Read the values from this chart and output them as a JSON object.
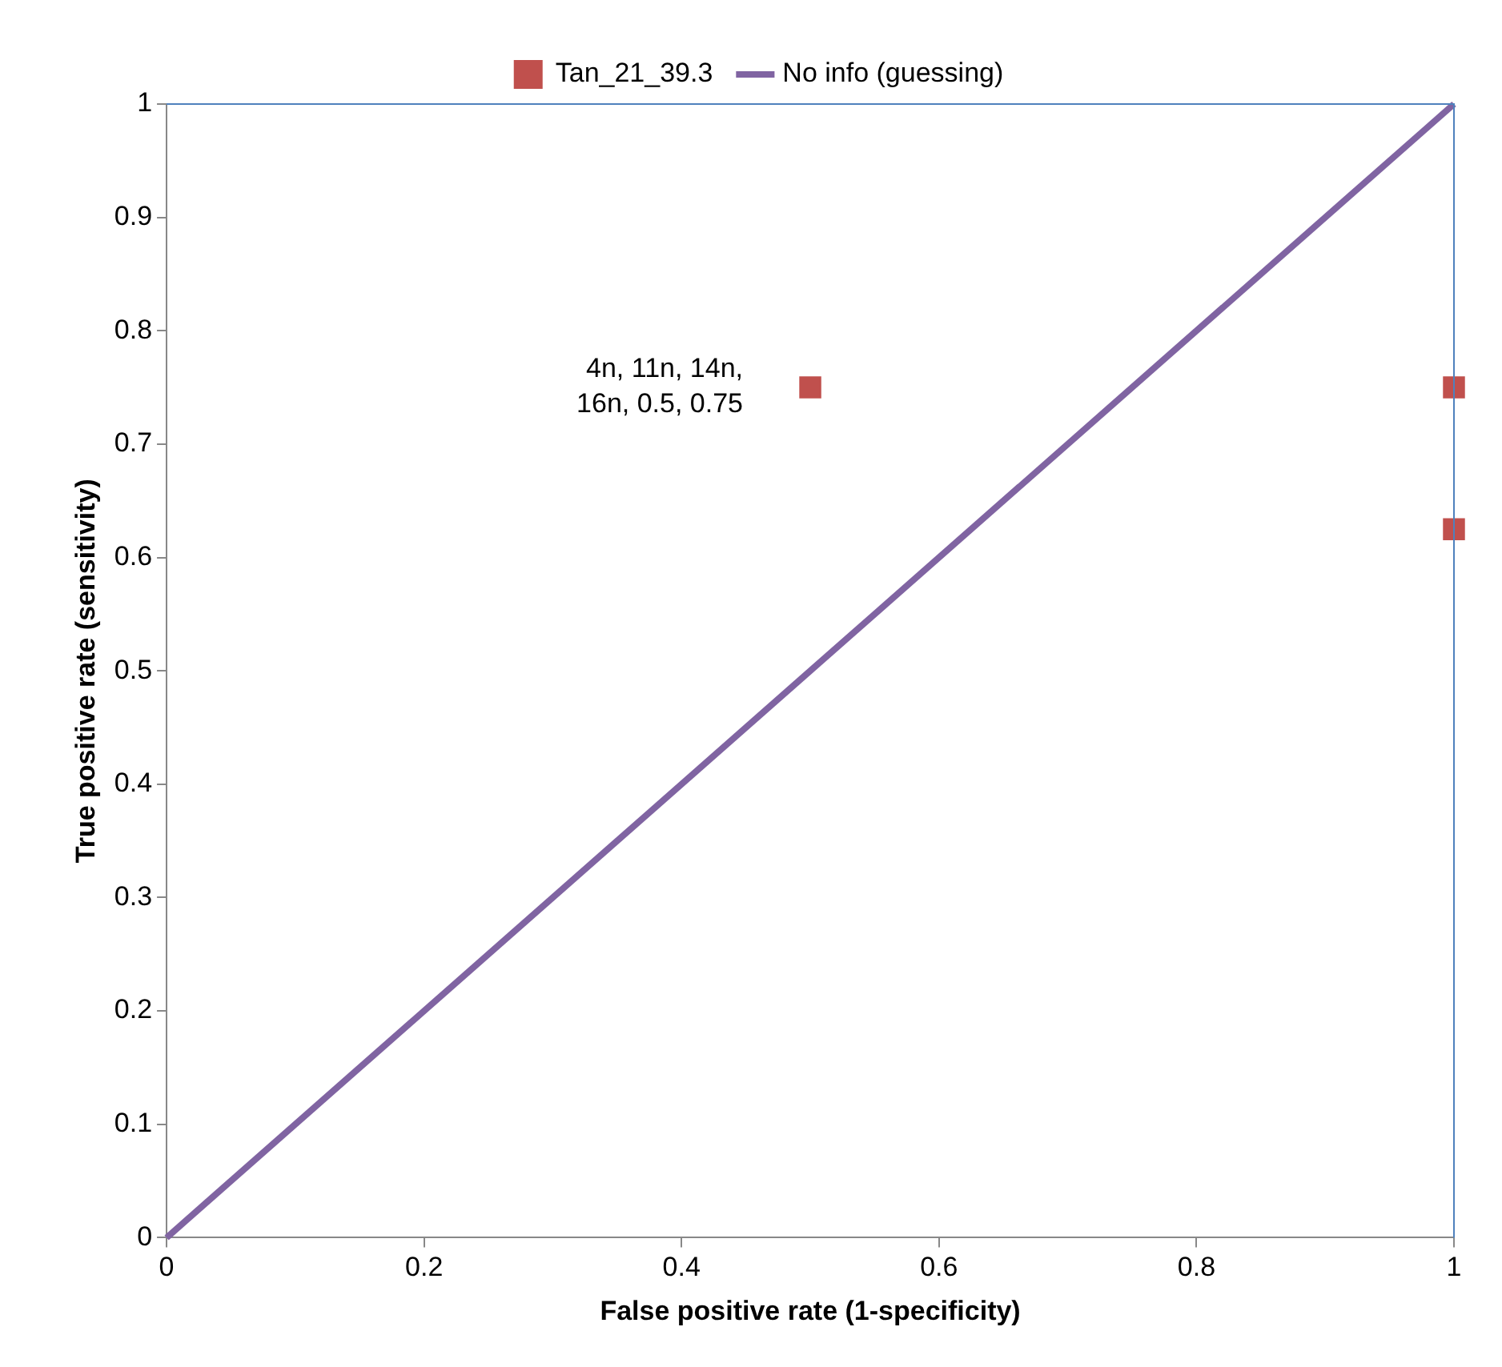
{
  "chart_data": {
    "type": "scatter",
    "xlabel": "False positive rate (1-specificity)",
    "ylabel": "True positive rate (sensitivity)",
    "series": [
      {
        "name": "Tan_21_39.3",
        "color": "#c0504d",
        "marker": "square",
        "x": [
          0.5,
          1,
          1
        ],
        "values": [
          0.75,
          0.75,
          0.625
        ]
      },
      {
        "name": "No info (guessing)",
        "type": "line",
        "marker": "none",
        "color": "#8064a2",
        "x": [
          0,
          1
        ],
        "values": [
          0,
          1
        ]
      }
    ],
    "xlim": [
      0,
      1
    ],
    "xticks": [
      0,
      0.2,
      0.4,
      0.6,
      0.8,
      1
    ],
    "ylim": [
      0,
      1
    ],
    "yticks": [
      0,
      0.1,
      0.2,
      0.3,
      0.4,
      0.5,
      0.6,
      0.7,
      0.8,
      0.9,
      1
    ],
    "annotations": [
      {
        "text": "4n, 11n, 14n, 16n, 0.5, 0.75",
        "x": 0.5,
        "y": 0.75
      }
    ],
    "grid": false,
    "legend": "top"
  }
}
